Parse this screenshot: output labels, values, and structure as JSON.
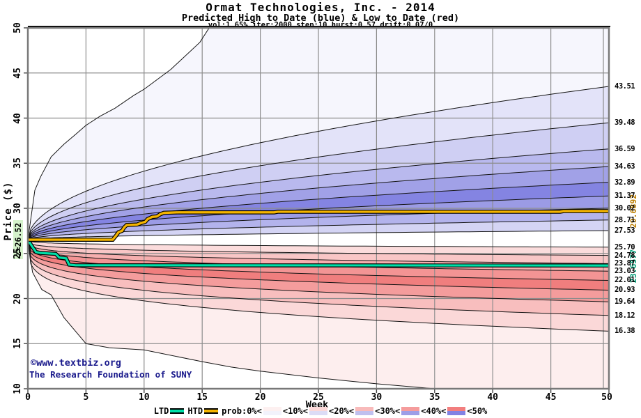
{
  "header": {
    "title": "Ormat Technologies, Inc. - 2014",
    "subtitle": "Predicted High to Date (blue) &  Low to Date (red)",
    "params": "vol:1.65% iter:2000 step:10 hurst:0.57 drift:0.07/0"
  },
  "watermark": {
    "line1": "©www.textbiz.org",
    "line2": "The Research Foundation of SUNY"
  },
  "chart_data": {
    "type": "area",
    "title": "Ormat Technologies, Inc. - 2014",
    "subtitle": "Predicted High to Date (blue) &  Low to Date (red)",
    "params_line": "vol:1.65% iter:2000 step:10 hurst:0.57 drift:0.07/0",
    "xlabel": "Week",
    "ylabel": "Price ($)",
    "xlim": [
      0,
      50
    ],
    "ylim": [
      10,
      50
    ],
    "xticks": [
      0,
      5,
      10,
      15,
      20,
      25,
      30,
      35,
      40,
      45,
      50
    ],
    "yticks": [
      10,
      15,
      20,
      25,
      30,
      35,
      40,
      45,
      50
    ],
    "grid_on": true,
    "grid_color": "#8c8c8c",
    "border_color": "#787878",
    "boundary_line_color": "#141414",
    "start_week": 0,
    "start_price": 26.52,
    "start_label": "z=26.52",
    "fan": {
      "note": "predicted decile boundaries; values are price at week 50",
      "blue_outer_points": [
        [
          0,
          26.52
        ],
        [
          0.6,
          32.0
        ],
        [
          1.1,
          33.5
        ],
        [
          2,
          35.7
        ],
        [
          3.1,
          37.1
        ],
        [
          4.2,
          38.3
        ],
        [
          5,
          39.2
        ],
        [
          6.2,
          40.2
        ],
        [
          7.5,
          41.1
        ],
        [
          9.1,
          42.5
        ],
        [
          10,
          43.2
        ],
        [
          12.3,
          45.4
        ],
        [
          14.8,
          48.4
        ],
        [
          15.6,
          50.0
        ],
        [
          50,
          50.0
        ]
      ],
      "blue_band_ends": [
        43.51,
        39.48,
        36.59,
        34.63,
        32.89,
        31.37,
        30.02,
        28.71,
        27.53
      ],
      "blue_exponent": 0.5,
      "blue_band_colors": [
        "#f6f6fd",
        "#e3e3f9",
        "#cfcff3",
        "#b9b9ee",
        "#a1a1e7",
        "#8484e2",
        "#9b9be5",
        "#b3b3ec",
        "#d4d4f4"
      ],
      "center_band_color": "#ffffff",
      "red_band_ends": [
        25.7,
        24.78,
        23.87,
        23.03,
        22.01,
        20.93,
        19.64,
        18.12,
        16.38
      ],
      "red_exponent": 0.25,
      "red_band_colors": [
        "#fbdcdc",
        "#f9c6c6",
        "#f6aeae",
        "#f39494",
        "#f07e7e",
        "#f49c9c",
        "#f8bebe",
        "#fbd8d8",
        "#fdeeee"
      ],
      "red_outer_points": [
        [
          0,
          26.52
        ],
        [
          0.4,
          22.9
        ],
        [
          1.2,
          21.0
        ],
        [
          2,
          20.4
        ],
        [
          3.1,
          17.9
        ],
        [
          5,
          15.0
        ],
        [
          7,
          14.55
        ],
        [
          10,
          14.3
        ],
        [
          15,
          13.0
        ],
        [
          17.5,
          12.4
        ],
        [
          20,
          11.95
        ],
        [
          25,
          11.2
        ],
        [
          30,
          10.55
        ],
        [
          35,
          10.0
        ],
        [
          50,
          10.0
        ]
      ]
    },
    "right_axis_labels": [
      "43.51",
      "39.48",
      "36.59",
      "34.63",
      "32.89",
      "31.37",
      "30.02",
      "28.71",
      "27.53",
      "25.70",
      "24.78",
      "23.87",
      "23.03",
      "22.01",
      "20.93",
      "19.64",
      "18.12",
      "16.38"
    ],
    "lines": {
      "htd": {
        "label": "HTD",
        "color": "#f4b400",
        "outline_color": "#000000",
        "end_value": "29.6892",
        "end_label_color": "#bd7e00",
        "points": [
          [
            0,
            26.52
          ],
          [
            7.3,
            26.52
          ],
          [
            7.6,
            27.0
          ],
          [
            7.8,
            27.35
          ],
          [
            8.1,
            27.5
          ],
          [
            8.3,
            27.9
          ],
          [
            8.5,
            28.15
          ],
          [
            9.4,
            28.2
          ],
          [
            9.7,
            28.35
          ],
          [
            10.1,
            28.5
          ],
          [
            10.3,
            28.8
          ],
          [
            10.7,
            29.05
          ],
          [
            11.1,
            29.1
          ],
          [
            11.4,
            29.35
          ],
          [
            11.7,
            29.5
          ],
          [
            13.0,
            29.55
          ],
          [
            21.2,
            29.55
          ],
          [
            21.5,
            29.62
          ],
          [
            45.8,
            29.62
          ],
          [
            46.1,
            29.689
          ],
          [
            50,
            29.6892
          ]
        ]
      },
      "ltd": {
        "label": "LTD",
        "color": "#00dfa8",
        "outline_color": "#000000",
        "end_value": "23.6577",
        "end_label_color": "#009e78",
        "points": [
          [
            0,
            26.52
          ],
          [
            0.35,
            25.8
          ],
          [
            0.7,
            25.15
          ],
          [
            1.1,
            25.05
          ],
          [
            2.4,
            24.95
          ],
          [
            2.7,
            24.55
          ],
          [
            3.3,
            24.45
          ],
          [
            3.55,
            23.75
          ],
          [
            4.1,
            23.68
          ],
          [
            50,
            23.6577
          ]
        ]
      }
    },
    "legend": {
      "line_items": [
        {
          "label": "LTD",
          "color": "#00dfa8"
        },
        {
          "label": "HTD",
          "color": "#f4b400"
        }
      ],
      "prob_items": [
        {
          "label": "prob:0%<",
          "red": "#fdf0f0",
          "blue": "#f2f2fb"
        },
        {
          "label": "<10%<",
          "red": "#fbd8d8",
          "blue": "#dcdcf6"
        },
        {
          "label": "<20%<",
          "red": "#f8baba",
          "blue": "#c0c0ef"
        },
        {
          "label": "<30%<",
          "red": "#f59c9c",
          "blue": "#9e9ee7"
        },
        {
          "label": "<40%<",
          "red": "#f27e7e",
          "blue": "#8282e4"
        },
        {
          "label": "<50%",
          "red": null,
          "blue": null
        }
      ]
    }
  }
}
